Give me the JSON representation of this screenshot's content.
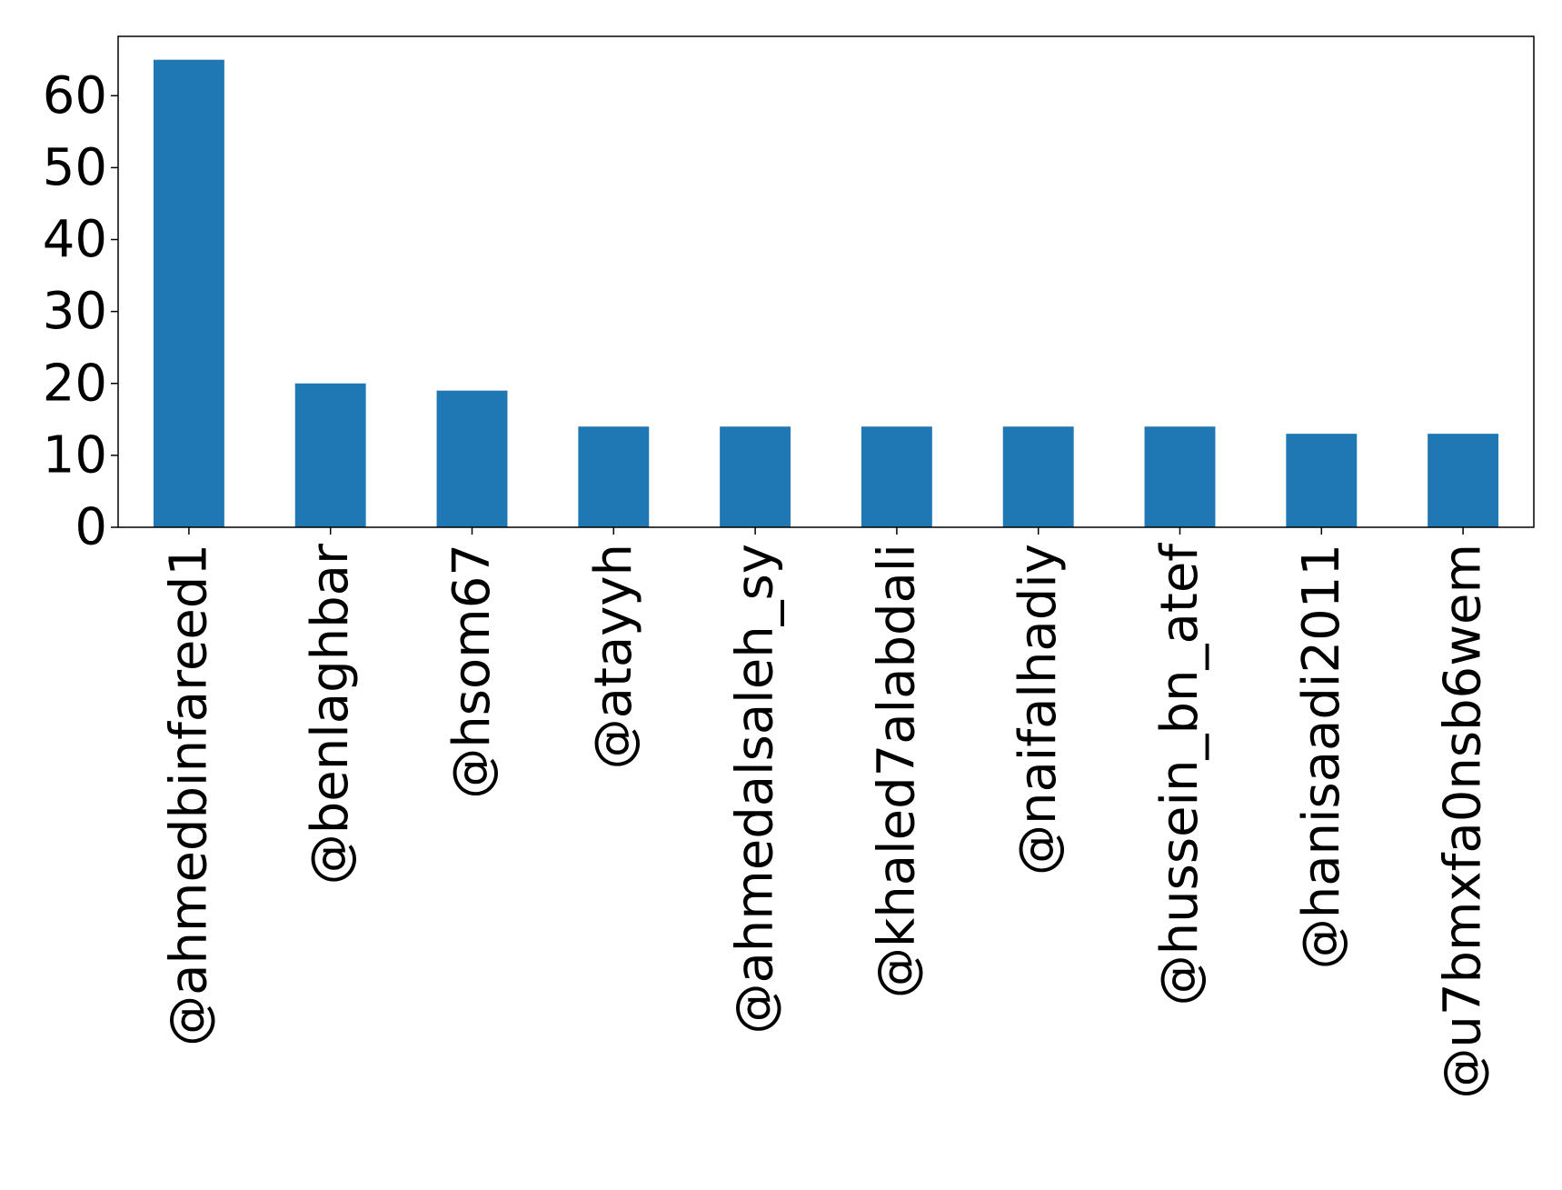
{
  "chart_data": {
    "type": "bar",
    "title": "",
    "xlabel": "",
    "ylabel": "",
    "categories": [
      "@ahmedbinfareed1",
      "@benlaghbar",
      "@hsom67",
      "@atayyh",
      "@ahmedalsaleh_sy",
      "@khaled7alabdali",
      "@naifalhadiy",
      "@hussein_bn_atef",
      "@hanisaadi2011",
      "@u7bmxfa0nsb6wem"
    ],
    "values": [
      65,
      20,
      19,
      14,
      14,
      14,
      14,
      14,
      13,
      13
    ],
    "ylim": [
      0,
      68.25
    ],
    "yticks": [
      0,
      10,
      20,
      30,
      40,
      50,
      60
    ],
    "grid": false,
    "legend": "none",
    "bar_color": "#1f77b4"
  }
}
